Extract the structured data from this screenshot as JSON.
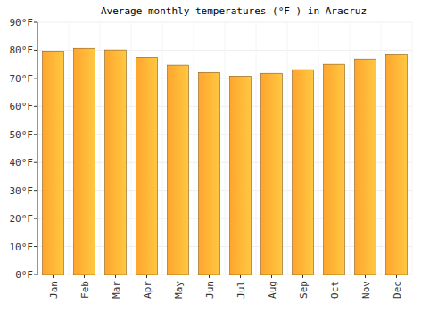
{
  "chart_data": {
    "type": "bar",
    "title": "Average monthly temperatures (°F ) in Aracruz",
    "categories": [
      "Jan",
      "Feb",
      "Mar",
      "Apr",
      "May",
      "Jun",
      "Jul",
      "Aug",
      "Sep",
      "Oct",
      "Nov",
      "Dec"
    ],
    "values": [
      79.7,
      80.7,
      80.1,
      77.5,
      74.7,
      72.1,
      70.8,
      71.8,
      73.1,
      75.0,
      76.9,
      78.4
    ],
    "color": "#ffa52e",
    "ylim": [
      0,
      90
    ],
    "yticks": [
      {
        "value": 0,
        "label": "0°F"
      },
      {
        "value": 10,
        "label": "10°F"
      },
      {
        "value": 20,
        "label": "20°F"
      },
      {
        "value": 30,
        "label": "30°F"
      },
      {
        "value": 40,
        "label": "40°F"
      },
      {
        "value": 50,
        "label": "50°F"
      },
      {
        "value": 60,
        "label": "60°F"
      },
      {
        "value": 70,
        "label": "70°F"
      },
      {
        "value": 80,
        "label": "80°F"
      },
      {
        "value": 90,
        "label": "90°F"
      }
    ],
    "grid": true
  }
}
